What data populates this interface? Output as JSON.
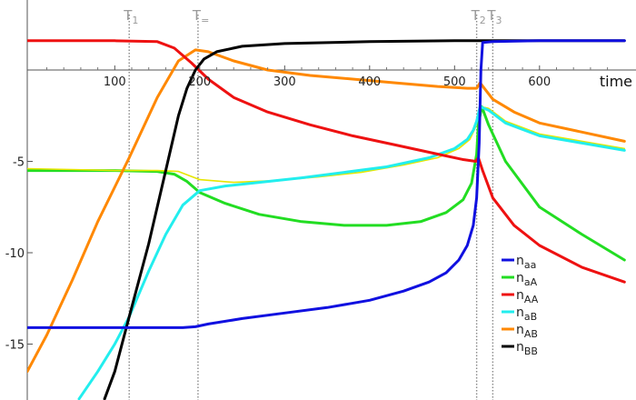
{
  "chart_data": {
    "type": "line",
    "xlabel": "time",
    "ylabel": "",
    "xlim": [
      -3,
      700
    ],
    "ylim": [
      -18,
      3
    ],
    "x_ticks": [
      100,
      200,
      300,
      400,
      500,
      600
    ],
    "y_ticks": [
      -5,
      -10,
      -15
    ],
    "grid": false,
    "legend_position": "bottom-right",
    "markers": [
      {
        "id": "T1",
        "base": "T",
        "sub": "1",
        "x": 117
      },
      {
        "id": "Teq",
        "base": "T",
        "sub": "=",
        "x": 198
      },
      {
        "id": "T2",
        "base": "T",
        "sub": "2",
        "x": 526
      },
      {
        "id": "T3",
        "base": "T",
        "sub": "3",
        "x": 545
      }
    ],
    "series": [
      {
        "id": "naa",
        "name_base": "n",
        "name_sub": "aa",
        "color": "#1010e0",
        "points": [
          [
            -3,
            -14.1
          ],
          [
            50,
            -14.1
          ],
          [
            100,
            -14.1
          ],
          [
            150,
            -14.1
          ],
          [
            180,
            -14.1
          ],
          [
            195,
            -14.05
          ],
          [
            210,
            -13.9
          ],
          [
            250,
            -13.6
          ],
          [
            300,
            -13.3
          ],
          [
            350,
            -13.0
          ],
          [
            400,
            -12.6
          ],
          [
            440,
            -12.1
          ],
          [
            470,
            -11.6
          ],
          [
            490,
            -11.1
          ],
          [
            505,
            -10.4
          ],
          [
            515,
            -9.6
          ],
          [
            522,
            -8.5
          ],
          [
            526,
            -7.0
          ],
          [
            529,
            -4.0
          ],
          [
            531,
            0.0
          ],
          [
            533,
            1.5
          ],
          [
            545,
            1.55
          ],
          [
            600,
            1.6
          ],
          [
            700,
            1.6
          ]
        ]
      },
      {
        "id": "naA",
        "name_base": "n",
        "name_sub": "aA",
        "color": "#22dd22",
        "points": [
          [
            -3,
            -5.5
          ],
          [
            50,
            -5.5
          ],
          [
            100,
            -5.5
          ],
          [
            150,
            -5.55
          ],
          [
            170,
            -5.7
          ],
          [
            185,
            -6.1
          ],
          [
            200,
            -6.7
          ],
          [
            230,
            -7.3
          ],
          [
            270,
            -7.9
          ],
          [
            320,
            -8.3
          ],
          [
            370,
            -8.5
          ],
          [
            420,
            -8.5
          ],
          [
            460,
            -8.3
          ],
          [
            490,
            -7.8
          ],
          [
            510,
            -7.1
          ],
          [
            520,
            -6.2
          ],
          [
            526,
            -4.6
          ],
          [
            528,
            -3.0
          ],
          [
            532,
            -2.0
          ],
          [
            540,
            -3.0
          ],
          [
            560,
            -5.0
          ],
          [
            600,
            -7.5
          ],
          [
            650,
            -9.0
          ],
          [
            700,
            -10.4
          ]
        ]
      },
      {
        "id": "nAA",
        "name_base": "n",
        "name_sub": "AA",
        "color": "#ee1111",
        "points": [
          [
            -3,
            1.6
          ],
          [
            50,
            1.6
          ],
          [
            100,
            1.6
          ],
          [
            150,
            1.55
          ],
          [
            170,
            1.2
          ],
          [
            190,
            0.4
          ],
          [
            210,
            -0.5
          ],
          [
            240,
            -1.5
          ],
          [
            280,
            -2.3
          ],
          [
            330,
            -3.0
          ],
          [
            380,
            -3.6
          ],
          [
            430,
            -4.1
          ],
          [
            480,
            -4.6
          ],
          [
            510,
            -4.9
          ],
          [
            525,
            -5.0
          ],
          [
            528,
            -4.8
          ],
          [
            533,
            -5.5
          ],
          [
            545,
            -7.0
          ],
          [
            570,
            -8.5
          ],
          [
            600,
            -9.6
          ],
          [
            650,
            -10.8
          ],
          [
            700,
            -11.6
          ]
        ]
      },
      {
        "id": "naB",
        "name_base": "n",
        "name_sub": "aB",
        "color": "#22eeee",
        "points": [
          [
            58,
            -18.0
          ],
          [
            80,
            -16.5
          ],
          [
            100,
            -15.0
          ],
          [
            117,
            -13.5
          ],
          [
            140,
            -11.0
          ],
          [
            160,
            -9.0
          ],
          [
            180,
            -7.4
          ],
          [
            200,
            -6.6
          ],
          [
            230,
            -6.35
          ],
          [
            270,
            -6.15
          ],
          [
            320,
            -5.9
          ],
          [
            370,
            -5.6
          ],
          [
            420,
            -5.3
          ],
          [
            470,
            -4.8
          ],
          [
            500,
            -4.3
          ],
          [
            515,
            -3.8
          ],
          [
            522,
            -3.3
          ],
          [
            526,
            -2.8
          ],
          [
            530,
            -2.0
          ],
          [
            540,
            -2.2
          ],
          [
            560,
            -2.9
          ],
          [
            600,
            -3.6
          ],
          [
            650,
            -4.0
          ],
          [
            700,
            -4.4
          ]
        ]
      },
      {
        "id": "nAB",
        "name_base": "n",
        "name_sub": "AB",
        "color": "#ff8800",
        "points": [
          [
            -3,
            -16.5
          ],
          [
            20,
            -14.5
          ],
          [
            50,
            -11.5
          ],
          [
            80,
            -8.3
          ],
          [
            117,
            -4.8
          ],
          [
            150,
            -1.5
          ],
          [
            175,
            0.5
          ],
          [
            195,
            1.1
          ],
          [
            210,
            1.0
          ],
          [
            240,
            0.5
          ],
          [
            280,
            0.0
          ],
          [
            330,
            -0.3
          ],
          [
            380,
            -0.5
          ],
          [
            430,
            -0.7
          ],
          [
            480,
            -0.9
          ],
          [
            515,
            -1.0
          ],
          [
            526,
            -1.0
          ],
          [
            530,
            -0.7
          ],
          [
            535,
            -1.0
          ],
          [
            545,
            -1.6
          ],
          [
            570,
            -2.3
          ],
          [
            600,
            -2.9
          ],
          [
            650,
            -3.4
          ],
          [
            700,
            -3.9
          ]
        ]
      },
      {
        "id": "nBB",
        "name_base": "n",
        "name_sub": "BB",
        "color": "#000000",
        "points": [
          [
            88,
            -18.0
          ],
          [
            100,
            -16.5
          ],
          [
            117,
            -13.5
          ],
          [
            140,
            -9.5
          ],
          [
            160,
            -5.5
          ],
          [
            175,
            -2.5
          ],
          [
            185,
            -1.0
          ],
          [
            195,
            0.0
          ],
          [
            205,
            0.6
          ],
          [
            220,
            1.0
          ],
          [
            250,
            1.3
          ],
          [
            300,
            1.45
          ],
          [
            400,
            1.55
          ],
          [
            500,
            1.6
          ],
          [
            600,
            1.6
          ],
          [
            700,
            1.6
          ]
        ]
      },
      {
        "id": "nExtra",
        "name_base": "",
        "name_sub": "",
        "color": "#e6e600",
        "points": [
          [
            -3,
            -5.4
          ],
          [
            50,
            -5.45
          ],
          [
            100,
            -5.5
          ],
          [
            150,
            -5.5
          ],
          [
            175,
            -5.55
          ],
          [
            200,
            -6.0
          ],
          [
            240,
            -6.15
          ],
          [
            290,
            -6.05
          ],
          [
            340,
            -5.85
          ],
          [
            390,
            -5.6
          ],
          [
            440,
            -5.2
          ],
          [
            480,
            -4.8
          ],
          [
            505,
            -4.3
          ],
          [
            518,
            -3.8
          ],
          [
            525,
            -3.1
          ],
          [
            530,
            -2.0
          ],
          [
            540,
            -2.1
          ],
          [
            560,
            -2.8
          ],
          [
            600,
            -3.5
          ],
          [
            650,
            -3.9
          ],
          [
            700,
            -4.3
          ]
        ]
      }
    ],
    "legend_order": [
      "naa",
      "naA",
      "nAA",
      "naB",
      "nAB",
      "nBB"
    ]
  }
}
